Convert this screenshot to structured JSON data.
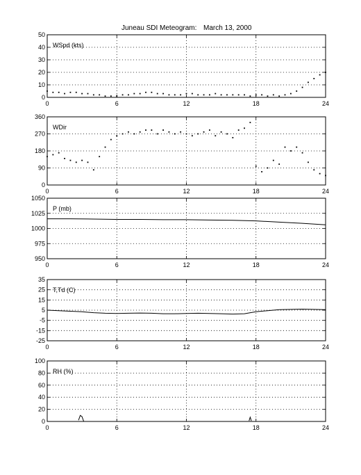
{
  "title_text": "Juneau SDI Meteogram:",
  "date_text": "March 13, 2000",
  "chart_data": [
    {
      "type": "scatter",
      "label": "WSpd (kts)",
      "xlim": [
        0,
        24
      ],
      "ylim": [
        0,
        50
      ],
      "xticks": [
        0,
        6,
        12,
        18,
        24
      ],
      "yticks": [
        0,
        10,
        20,
        30,
        40,
        50
      ],
      "grid": true,
      "series": [
        {
          "x": [
            0,
            0.5,
            1,
            1.5,
            2,
            2.5,
            3,
            3.5,
            4,
            4.5,
            5,
            5.5,
            6,
            6.5,
            7,
            7.5,
            8,
            8.5,
            9,
            9.5,
            10,
            10.5,
            11,
            11.5,
            12,
            12.5,
            13,
            13.5,
            14,
            14.5,
            15,
            15.5,
            16,
            16.5,
            17,
            17.5,
            18,
            18.5,
            19,
            19.5,
            20,
            20.5,
            21,
            21.5,
            22,
            22.5,
            23,
            23.5,
            24
          ],
          "values": [
            5,
            4,
            4,
            3,
            4,
            4,
            3,
            3,
            2,
            2,
            1,
            1,
            1,
            2,
            2,
            3,
            3,
            4,
            4,
            3,
            3,
            2,
            2,
            2,
            3,
            3,
            2,
            2,
            2,
            3,
            2,
            2,
            2,
            2,
            2,
            1,
            2,
            2,
            1,
            2,
            1,
            2,
            3,
            5,
            8,
            12,
            15,
            18,
            20
          ]
        }
      ]
    },
    {
      "type": "scatter",
      "label": "WDir",
      "xlim": [
        0,
        24
      ],
      "ylim": [
        0,
        360
      ],
      "xticks": [
        0,
        6,
        12,
        18,
        24
      ],
      "yticks": [
        0,
        90,
        180,
        270,
        360
      ],
      "grid": true,
      "series": [
        {
          "x": [
            0,
            0.5,
            1,
            1.5,
            2,
            2.5,
            3,
            3.5,
            4,
            4.5,
            5,
            5.5,
            6,
            6.5,
            7,
            7.5,
            8,
            8.5,
            9,
            9.5,
            10,
            10.5,
            11,
            11.5,
            12,
            12.5,
            13,
            13.5,
            14,
            14.5,
            15,
            15.5,
            16,
            16.5,
            17,
            17.5,
            18,
            18.5,
            19,
            19.5,
            20,
            20.5,
            21,
            21.5,
            22,
            22.5,
            23,
            23.5,
            24
          ],
          "values": [
            150,
            160,
            170,
            140,
            130,
            120,
            130,
            120,
            80,
            150,
            200,
            240,
            260,
            270,
            280,
            270,
            280,
            290,
            290,
            270,
            290,
            280,
            270,
            280,
            270,
            260,
            270,
            280,
            290,
            260,
            280,
            270,
            250,
            290,
            300,
            330,
            100,
            70,
            90,
            130,
            110,
            200,
            180,
            200,
            170,
            120,
            80,
            60,
            50
          ]
        }
      ]
    },
    {
      "type": "line",
      "label": "P (mb)",
      "xlim": [
        0,
        24
      ],
      "ylim": [
        950,
        1050
      ],
      "xticks": [
        0,
        6,
        12,
        18,
        24
      ],
      "yticks": [
        950,
        975,
        1000,
        1025,
        1050
      ],
      "grid": true,
      "series": [
        {
          "x": [
            0,
            2,
            4,
            6,
            8,
            10,
            12,
            14,
            16,
            18,
            20,
            22,
            24
          ],
          "values": [
            1016,
            1016,
            1015.5,
            1015,
            1015,
            1014.5,
            1014.5,
            1014,
            1013.5,
            1012.5,
            1010.5,
            1008.5,
            1006
          ]
        }
      ]
    },
    {
      "type": "line",
      "label": "T,Td (C)",
      "xlim": [
        0,
        24
      ],
      "ylim": [
        -25,
        35
      ],
      "xticks": [
        0,
        6,
        12,
        18,
        24
      ],
      "yticks": [
        -25,
        -15,
        -5,
        5,
        15,
        25,
        35
      ],
      "grid": true,
      "series": [
        {
          "x": [
            0,
            1,
            2,
            3,
            4,
            5,
            6,
            7,
            8,
            9,
            10,
            11,
            12,
            13,
            14,
            15,
            16,
            17,
            18,
            19,
            20,
            21,
            22,
            23,
            24
          ],
          "values": [
            5,
            4.5,
            4,
            3.5,
            2.5,
            2,
            1.8,
            2,
            2.2,
            2,
            1.5,
            1.5,
            1.8,
            2,
            1.8,
            1.5,
            1.2,
            1.5,
            3.5,
            4.5,
            5.5,
            5.8,
            6,
            5.8,
            5.5
          ]
        }
      ]
    },
    {
      "type": "line",
      "label": "RH (%)",
      "xlim": [
        0,
        24
      ],
      "ylim": [
        0,
        100
      ],
      "xticks": [
        0,
        6,
        12,
        18,
        24
      ],
      "yticks": [
        0,
        20,
        40,
        60,
        80,
        100
      ],
      "grid": true,
      "series": [
        {
          "x": [
            2.7,
            2.85,
            3.0,
            3.15
          ],
          "values": [
            2,
            10,
            8,
            0
          ]
        },
        {
          "x": [
            17.4,
            17.5,
            17.6
          ],
          "values": [
            1,
            7,
            1
          ]
        }
      ]
    }
  ]
}
